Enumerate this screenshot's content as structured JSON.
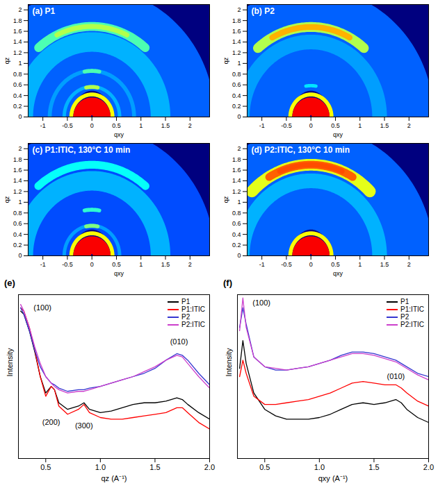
{
  "chart_data": [
    {
      "type": "image",
      "title": "(a) P1",
      "x_label": "qxy",
      "y_label": "qz",
      "xlim": [
        -1.3,
        2.4
      ],
      "ylim": [
        0,
        2.1
      ],
      "xticks": [
        -1,
        -0.5,
        0,
        0.5,
        1,
        1.5,
        2
      ],
      "yticks": [
        0,
        0.2,
        0.4,
        0.6,
        0.8,
        1,
        1.2,
        1.4,
        1.6,
        1.8,
        2
      ],
      "intensity_lim": [
        0,
        1
      ],
      "features": [
        {
          "q": [
            0.4,
            2.5
          ],
          "chi": [
            -90,
            90
          ],
          "intensity": 0.22
        },
        {
          "q": [
            1.2,
            1.6
          ],
          "chi": [
            -90,
            90
          ],
          "intensity": 0.3
        },
        {
          "q": [
            0.53,
            0.6
          ],
          "chi": [
            -90,
            90
          ],
          "intensity": 0.3
        },
        {
          "q": [
            0.82,
            0.9
          ],
          "chi": [
            -90,
            90
          ],
          "intensity": 0.28
        },
        {
          "q": [
            1.6,
            1.78
          ],
          "chi": [
            -40,
            40
          ],
          "intensity": 0.45
        },
        {
          "q": [
            1.64,
            1.74
          ],
          "chi": [
            -25,
            25
          ],
          "intensity": 0.55
        },
        {
          "q": [
            0.52,
            0.6
          ],
          "chi": [
            -12,
            12
          ],
          "intensity": 0.55
        },
        {
          "q": [
            0.82,
            0.9
          ],
          "chi": [
            -10,
            10
          ],
          "intensity": 0.45
        },
        {
          "q": [
            0.38,
            0.46
          ],
          "chi": [
            -90,
            90
          ],
          "intensity": 0.62
        },
        {
          "q": [
            0.02,
            0.38
          ],
          "chi": [
            -90,
            90
          ],
          "intensity": 0.88
        }
      ]
    },
    {
      "type": "image",
      "title": "(b) P2",
      "x_label": "qxy",
      "y_label": "qz",
      "xlim": [
        -1.3,
        2.4
      ],
      "ylim": [
        0,
        2.1
      ],
      "xticks": [
        -1,
        -0.5,
        0,
        0.5,
        1,
        1.5,
        2
      ],
      "yticks": [
        0,
        0.2,
        0.4,
        0.6,
        0.8,
        1,
        1.2,
        1.4,
        1.6,
        1.8,
        2
      ],
      "intensity_lim": [
        0,
        1
      ],
      "features": [
        {
          "q": [
            0.4,
            2.5
          ],
          "chi": [
            -90,
            90
          ],
          "intensity": 0.22
        },
        {
          "q": [
            1.25,
            1.55
          ],
          "chi": [
            -90,
            90
          ],
          "intensity": 0.28
        },
        {
          "q": [
            0.55,
            0.62
          ],
          "chi": [
            -10,
            10
          ],
          "intensity": 0.35
        },
        {
          "q": [
            1.58,
            1.78
          ],
          "chi": [
            -40,
            40
          ],
          "intensity": 0.55
        },
        {
          "q": [
            1.62,
            1.74
          ],
          "chi": [
            -28,
            28
          ],
          "intensity": 0.7
        },
        {
          "q": [
            0.38,
            0.46
          ],
          "chi": [
            -90,
            90
          ],
          "intensity": 0.62
        },
        {
          "q": [
            0.02,
            0.38
          ],
          "chi": [
            -90,
            90
          ],
          "intensity": 0.88
        }
      ]
    },
    {
      "type": "image",
      "title": "(c) P1:ITIC, 130°C 10 min",
      "x_label": "qxy",
      "y_label": "qz",
      "xlim": [
        -1.3,
        2.4
      ],
      "ylim": [
        0,
        2.1
      ],
      "xticks": [
        -1,
        -0.5,
        0,
        0.5,
        1,
        1.5,
        2
      ],
      "yticks": [
        0,
        0.2,
        0.4,
        0.6,
        0.8,
        1,
        1.2,
        1.4,
        1.6,
        1.8,
        2
      ],
      "intensity_lim": [
        0,
        1
      ],
      "features": [
        {
          "q": [
            0.4,
            2.5
          ],
          "chi": [
            -90,
            90
          ],
          "intensity": 0.2
        },
        {
          "q": [
            1.2,
            1.6
          ],
          "chi": [
            -90,
            90
          ],
          "intensity": 0.3
        },
        {
          "q": [
            0.53,
            0.6
          ],
          "chi": [
            -90,
            90
          ],
          "intensity": 0.28
        },
        {
          "q": [
            1.62,
            1.78
          ],
          "chi": [
            -40,
            40
          ],
          "intensity": 0.38
        },
        {
          "q": [
            0.82,
            0.9
          ],
          "chi": [
            -10,
            10
          ],
          "intensity": 0.42
        },
        {
          "q": [
            0.52,
            0.6
          ],
          "chi": [
            -12,
            12
          ],
          "intensity": 0.5
        },
        {
          "q": [
            0.38,
            0.46
          ],
          "chi": [
            -90,
            90
          ],
          "intensity": 0.62
        },
        {
          "q": [
            0.02,
            0.38
          ],
          "chi": [
            -90,
            90
          ],
          "intensity": 0.88
        }
      ]
    },
    {
      "type": "image",
      "title": "(d) P2:ITIC, 130°C 10 min",
      "x_label": "qxy",
      "y_label": "qz",
      "xlim": [
        -1.3,
        2.4
      ],
      "ylim": [
        0,
        2.1
      ],
      "xticks": [
        -1,
        -0.5,
        0,
        0.5,
        1,
        1.5,
        2
      ],
      "yticks": [
        0,
        0.2,
        0.4,
        0.6,
        0.8,
        1,
        1.2,
        1.4,
        1.6,
        1.8,
        2
      ],
      "intensity_lim": [
        0,
        1
      ],
      "features": [
        {
          "q": [
            0.4,
            2.5
          ],
          "chi": [
            -90,
            90
          ],
          "intensity": 0.22
        },
        {
          "q": [
            1.25,
            1.55
          ],
          "chi": [
            -90,
            90
          ],
          "intensity": 0.3
        },
        {
          "q": [
            1.58,
            1.82
          ],
          "chi": [
            -45,
            45
          ],
          "intensity": 0.6
        },
        {
          "q": [
            0.38,
            0.46
          ],
          "chi": [
            -90,
            90
          ],
          "intensity": 0.62
        },
        {
          "q": [
            1.62,
            1.78
          ],
          "chi": [
            -30,
            30
          ],
          "intensity": 0.78
        },
        {
          "q": [
            1.65,
            1.75
          ],
          "chi": [
            -22,
            22
          ],
          "intensity": 0.8
        },
        {
          "q": [
            0.02,
            0.38
          ],
          "chi": [
            -90,
            90
          ],
          "intensity": 0.88
        }
      ]
    },
    {
      "type": "line",
      "panel": "(e)",
      "x_label": "qz (A⁻¹)",
      "y_label": "Intensity",
      "xlim": [
        0.25,
        2.0
      ],
      "ylim": [
        0,
        100
      ],
      "xticks": [
        0.5,
        {
          "value": 1,
          "label": "1.0"
        },
        1.5,
        {
          "value": 2,
          "label": "2.0"
        }
      ],
      "yticks": [],
      "tick_labels": "x",
      "legend": "top-right",
      "x": [
        0.27,
        0.3,
        0.35,
        0.4,
        0.45,
        0.5,
        0.55,
        0.58,
        0.62,
        0.7,
        0.8,
        0.85,
        0.9,
        1.0,
        1.1,
        1.2,
        1.3,
        1.4,
        1.5,
        1.6,
        1.7,
        1.75,
        1.8,
        1.9,
        2.0
      ],
      "series": [
        {
          "name": "P1",
          "color": "#000000",
          "values": [
            90,
            88,
            78,
            65,
            50,
            40,
            44,
            42,
            34,
            30,
            32,
            34,
            30,
            28,
            29,
            31,
            33,
            34,
            34,
            35,
            37,
            36,
            33,
            28,
            24
          ]
        },
        {
          "name": "P1:ITIC",
          "color": "#ff0000",
          "values": [
            92,
            90,
            80,
            66,
            50,
            38,
            44,
            42,
            32,
            27,
            30,
            33,
            28,
            25,
            24,
            24,
            25,
            26,
            27,
            28,
            31,
            31,
            28,
            22,
            18
          ]
        },
        {
          "name": "P2",
          "color": "#3535d0",
          "values": [
            92,
            88,
            78,
            66,
            56,
            50,
            46,
            45,
            43,
            41,
            42,
            42,
            43,
            44,
            46,
            48,
            50,
            52,
            55,
            60,
            64,
            63,
            60,
            52,
            45
          ]
        },
        {
          "name": "P2:ITIC",
          "color": "#cc3fcc",
          "values": [
            94,
            90,
            80,
            68,
            58,
            50,
            46,
            44,
            42,
            40,
            41,
            41,
            42,
            44,
            46,
            48,
            50,
            53,
            56,
            60,
            63,
            62,
            58,
            50,
            43
          ]
        }
      ],
      "annotations": [
        {
          "text": "(100)",
          "x": 0.47,
          "y": 92
        },
        {
          "text": "(200)",
          "x": 0.55,
          "y": 22
        },
        {
          "text": "(300)",
          "x": 0.85,
          "y": 20
        },
        {
          "text": "(010)",
          "x": 1.72,
          "y": 71
        }
      ]
    },
    {
      "type": "line",
      "panel": "(f)",
      "x_label": "qxy (A⁻¹)",
      "y_label": "Intensity",
      "xlim": [
        0.25,
        2.0
      ],
      "ylim": [
        0,
        100
      ],
      "xticks": [
        0.5,
        {
          "value": 1,
          "label": "1.0"
        },
        1.5,
        {
          "value": 2,
          "label": "2.0"
        }
      ],
      "yticks": [],
      "tick_labels": "x",
      "legend": "top-right",
      "x": [
        0.27,
        0.3,
        0.33,
        0.4,
        0.5,
        0.6,
        0.7,
        0.8,
        0.9,
        1.0,
        1.1,
        1.2,
        1.3,
        1.4,
        1.5,
        1.6,
        1.7,
        1.75,
        1.8,
        1.9,
        2.0
      ],
      "series": [
        {
          "name": "P1",
          "color": "#000000",
          "values": [
            55,
            72,
            58,
            40,
            30,
            26,
            24,
            24,
            24,
            25,
            27,
            30,
            33,
            34,
            33,
            34,
            36,
            34,
            30,
            25,
            22
          ]
        },
        {
          "name": "P1:ITIC",
          "color": "#ff0000",
          "values": [
            50,
            60,
            52,
            38,
            33,
            33,
            34,
            35,
            36,
            38,
            40,
            43,
            46,
            47,
            46,
            45,
            45,
            43,
            40,
            35,
            32
          ]
        },
        {
          "name": "P2",
          "color": "#3535d0",
          "values": [
            80,
            92,
            82,
            62,
            56,
            54,
            54,
            55,
            56,
            58,
            60,
            63,
            65,
            65,
            64,
            62,
            60,
            58,
            56,
            52,
            50
          ]
        },
        {
          "name": "P2:ITIC",
          "color": "#cc3fcc",
          "values": [
            78,
            98,
            80,
            62,
            56,
            55,
            54,
            55,
            56,
            58,
            60,
            62,
            64,
            64,
            63,
            61,
            59,
            57,
            55,
            51,
            48
          ]
        }
      ],
      "annotations": [
        {
          "text": "(100)",
          "x": 0.47,
          "y": 95
        },
        {
          "text": "(010)",
          "x": 1.7,
          "y": 50
        }
      ]
    }
  ]
}
